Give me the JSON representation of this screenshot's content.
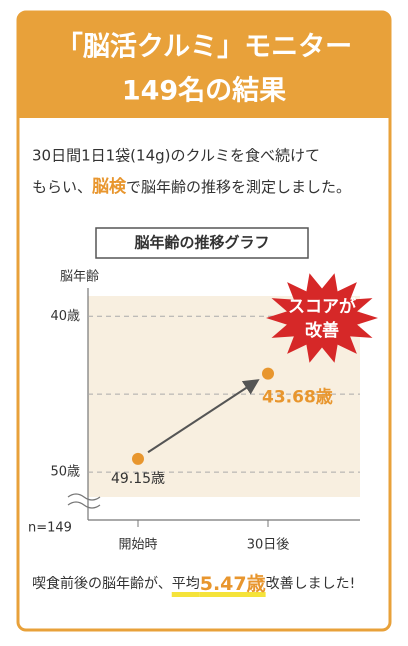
{
  "header": {
    "title_line1": "「脳活クルミ」モニター",
    "title_line2": "149名の結果"
  },
  "intro": {
    "line1": "30日間1日1袋(14g)のクルミを食べ続けて",
    "line2_a": "もらい、",
    "line2_b": "脳検",
    "line2_c": "で脳年齢の推移を測定しました。"
  },
  "chart_data": {
    "type": "line",
    "title": "脳年齢の推移グラフ",
    "y_label": "脳年齢",
    "sample_label": "n=149",
    "categories": [
      "開始時",
      "30日後"
    ],
    "values": [
      49.15,
      43.68
    ],
    "value_labels": [
      "49.15歳",
      "43.68歳"
    ],
    "color": "#e8962e",
    "ylim": [
      51.6,
      38.7
    ],
    "yticks": [
      {
        "value": 40,
        "label": "40歳"
      },
      {
        "value": 50,
        "label": "50歳"
      }
    ],
    "grid_values": [
      40,
      45,
      50
    ],
    "grid": true,
    "annotation": [
      "スコアが",
      "改善"
    ]
  },
  "footer": {
    "a": "喫食前後の脳年齢が、",
    "b": "平均",
    "c": "5.47歳",
    "d": "改善しました!"
  }
}
